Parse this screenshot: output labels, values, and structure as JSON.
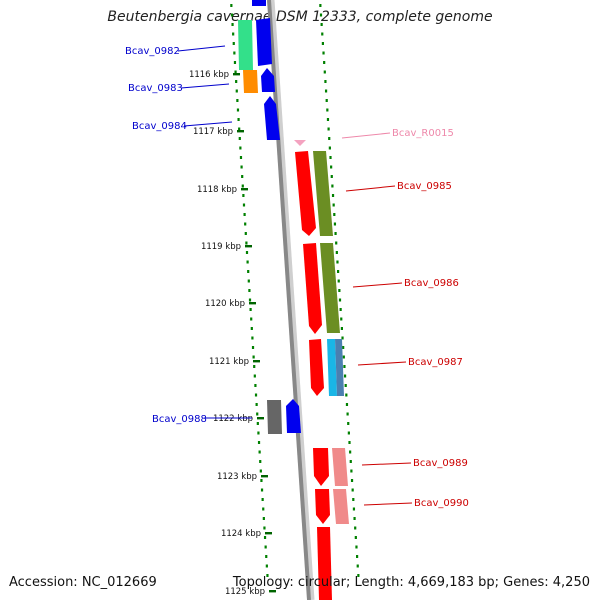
{
  "title": "Beutenbergia cavernae DSM 12333, complete genome",
  "footer": {
    "accession": "Accession: NC_012669",
    "topology": "Topology: circular; Length: 4,669,183 bp; Genes: 4,250"
  },
  "ticks": [
    "1116 kbp",
    "1117 kbp",
    "1118 kbp",
    "1119 kbp",
    "1120 kbp",
    "1121 kbp",
    "1122 kbp",
    "1123 kbp",
    "1124 kbp",
    "1125 kbp"
  ],
  "gene_labels": [
    {
      "id": "g0982",
      "text": "Bcav_0982",
      "color": "#0000cc"
    },
    {
      "id": "g0983",
      "text": "Bcav_0983",
      "color": "#0000cc"
    },
    {
      "id": "g0984",
      "text": "Bcav_0984",
      "color": "#0000cc"
    },
    {
      "id": "r0015",
      "text": "Bcav_R0015",
      "color": "#ee88aa"
    },
    {
      "id": "g0985",
      "text": "Bcav_0985",
      "color": "#cc0000"
    },
    {
      "id": "g0986",
      "text": "Bcav_0986",
      "color": "#cc0000"
    },
    {
      "id": "g0987",
      "text": "Bcav_0987",
      "color": "#cc0000"
    },
    {
      "id": "g0988",
      "text": "Bcav_0988",
      "color": "#0000cc"
    },
    {
      "id": "g0989",
      "text": "Bcav_0989",
      "color": "#cc0000"
    },
    {
      "id": "g0990",
      "text": "Bcav_0990",
      "color": "#cc0000"
    }
  ],
  "colors": {
    "forward_strand": "#ff0000",
    "reverse_strand": "#0000ee",
    "cog_olive": "#6b8e23",
    "cog_green": "#33e08a",
    "cog_orange": "#ff8c00",
    "cog_cyan": "#1ab6e6",
    "cog_gray": "#666666",
    "rna_pink": "#f4a3c0",
    "backbone": "#888888",
    "dotted_track": "#008000"
  }
}
